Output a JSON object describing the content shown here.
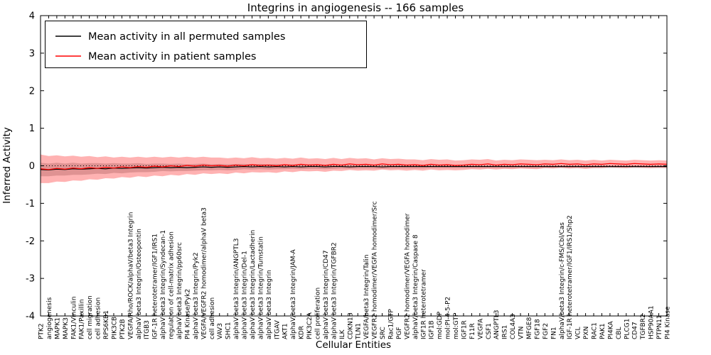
{
  "chart_data": {
    "type": "line",
    "title": "Integrins in angiogenesis -- 166 samples",
    "xlabel": "Cellular Entities",
    "ylabel": "Inferred Activity",
    "ylim": [
      -4,
      4
    ],
    "yticks": [
      -4,
      -3,
      -2,
      -1,
      0,
      1,
      2,
      3,
      4
    ],
    "grid": false,
    "legend_position": "upper left",
    "zero_line": {
      "y": 0,
      "style": "dotted",
      "color": "#000000"
    },
    "categories": [
      "PTK2",
      "angiogenesis",
      "MAPK1",
      "MAPK3",
      "FAK1/Vinculin",
      "FAK1/Paxillin",
      "cell migration",
      "cell adhesion",
      "RPS6KB1",
      "PIK3CB",
      "PTK2B",
      "VEGFA/Rho/ROCK/alphaV/beta3 Integrin",
      "alphaV beta3 Integrin/Osteopontin",
      "ITGB3",
      "IGF-1R heterotetramer/IGF1/IRS1",
      "alphaV beta3 Integrin/Syndecan-1",
      "regulation of cell-matrix adhesion",
      "alphaV beta3 Integrin/pp60src",
      "PI4 Kinase/Pyk2",
      "alphaV beta3 Integrin/Pyk2",
      "VEGFA/VEGFR2 homodimer/alphaV beta3",
      "cell adhesion",
      "VAV3",
      "SHC1",
      "alphaV beta3 Integrin/ANGPTL3",
      "alphaV beta3 Integrin/Del-1",
      "alphaV beta3 Integrin/Lactadherin",
      "alphaV beta3 Integrin/Tumstatin",
      "alphaV beta3 Integrin",
      "ITGAV",
      "AKT1",
      "alphaV/beta3 Integrin/JAM-A",
      "KDR",
      "PIK3C2A",
      "cell proliferation",
      "alphaV beta3 Integrin/CD47",
      "alphaV beta3 Integrin/TGFBR2",
      "ILK",
      "CDKN1B",
      "TLN1",
      "VEGFA/beta3 Integrin/Talin",
      "VEGFR2 homodimer/VEGFA homodimer/Src",
      "SRC",
      "Rac1/GTP",
      "PGF",
      "VEGFR2 homodimer/VEGFA homodimer",
      "alphaV/beta3 Integrin/Caspase 8",
      "IGF1R heterotetramer",
      "IGF1B",
      "mol:GDP",
      "mol:PI-4-5-P2",
      "mol:GTP",
      "IGF1R",
      "F11R",
      "VEGFA",
      "CSF1",
      "ANGPTL3",
      "IRS1",
      "COL4A3",
      "VTN",
      "MFGE8",
      "FGF18",
      "FGF2",
      "FN1",
      "alphaV/beta3 Integrin/c-FMS/Cbl/Cas",
      "IGF-1R heterotetramer/IGF1/IRS1/Shp2",
      "VCL",
      "PXN",
      "RAC1",
      "PAK1",
      "PI4KA",
      "CBL",
      "PLCG1",
      "CD47",
      "TGFBR2",
      "HSP90AA1",
      "PTPN11",
      "PI4 Kinase"
    ],
    "series": [
      {
        "name": "Mean activity in all permuted samples",
        "color": "#000000",
        "band_color": "rgba(0,0,0,0.18)",
        "values": [
          -0.1,
          -0.11,
          -0.09,
          -0.1,
          -0.08,
          -0.09,
          -0.08,
          -0.07,
          -0.08,
          -0.06,
          -0.07,
          -0.06,
          -0.05,
          -0.06,
          -0.05,
          -0.04,
          -0.05,
          -0.04,
          -0.05,
          -0.04,
          -0.03,
          -0.04,
          -0.03,
          -0.04,
          -0.03,
          -0.02,
          -0.03,
          -0.02,
          -0.03,
          -0.02,
          -0.03,
          -0.02,
          -0.03,
          -0.02,
          -0.02,
          -0.03,
          -0.02,
          -0.02,
          -0.03,
          -0.02,
          -0.02,
          -0.02,
          -0.03,
          -0.02,
          -0.02,
          -0.02,
          -0.02,
          -0.02,
          -0.02,
          -0.02,
          -0.02,
          -0.02,
          -0.02,
          -0.02,
          -0.02,
          -0.02,
          -0.02,
          -0.02,
          -0.02,
          -0.02,
          -0.02,
          -0.02,
          -0.02,
          -0.02,
          -0.02,
          -0.02,
          -0.02,
          -0.02,
          -0.02,
          -0.02,
          -0.02,
          -0.02,
          -0.02,
          -0.02,
          -0.02,
          -0.02,
          -0.02,
          -0.02
        ],
        "band_halfwidth": [
          0.18,
          0.17,
          0.17,
          0.16,
          0.16,
          0.15,
          0.15,
          0.14,
          0.14,
          0.13,
          0.13,
          0.12,
          0.12,
          0.11,
          0.11,
          0.1,
          0.1,
          0.1,
          0.09,
          0.09,
          0.09,
          0.08,
          0.08,
          0.08,
          0.08,
          0.07,
          0.07,
          0.07,
          0.07,
          0.07,
          0.06,
          0.06,
          0.06,
          0.06,
          0.06,
          0.06,
          0.06,
          0.05,
          0.05,
          0.05,
          0.05,
          0.05,
          0.05,
          0.05,
          0.05,
          0.05,
          0.05,
          0.05,
          0.04,
          0.04,
          0.04,
          0.04,
          0.04,
          0.04,
          0.04,
          0.04,
          0.04,
          0.04,
          0.04,
          0.04,
          0.04,
          0.04,
          0.04,
          0.04,
          0.04,
          0.04,
          0.04,
          0.04,
          0.04,
          0.04,
          0.04,
          0.04,
          0.04,
          0.04,
          0.04,
          0.04,
          0.04,
          0.04
        ]
      },
      {
        "name": "Mean activity in patient samples",
        "color": "#ff0000",
        "band_color": "rgba(255,0,0,0.30)",
        "values": [
          -0.08,
          -0.1,
          -0.07,
          -0.09,
          -0.06,
          -0.08,
          -0.05,
          -0.07,
          -0.04,
          -0.06,
          -0.03,
          -0.05,
          -0.02,
          -0.04,
          -0.01,
          -0.03,
          0.0,
          -0.02,
          0.01,
          -0.01,
          0.02,
          0.0,
          0.01,
          -0.01,
          0.02,
          0.0,
          0.03,
          0.01,
          0.02,
          0.0,
          0.03,
          0.01,
          0.04,
          0.02,
          0.03,
          0.01,
          0.04,
          0.02,
          0.05,
          0.03,
          0.04,
          0.02,
          0.05,
          0.03,
          0.04,
          0.02,
          0.03,
          0.01,
          0.04,
          0.02,
          0.03,
          0.01,
          0.02,
          0.04,
          0.03,
          0.05,
          0.02,
          0.04,
          0.03,
          0.05,
          0.04,
          0.03,
          0.05,
          0.04,
          0.06,
          0.04,
          0.05,
          0.03,
          0.05,
          0.04,
          0.06,
          0.05,
          0.04,
          0.06,
          0.05,
          0.04,
          0.05,
          0.04
        ],
        "band_halfwidth": [
          0.38,
          0.36,
          0.35,
          0.34,
          0.33,
          0.32,
          0.31,
          0.3,
          0.29,
          0.28,
          0.27,
          0.27,
          0.26,
          0.26,
          0.25,
          0.25,
          0.24,
          0.24,
          0.23,
          0.23,
          0.22,
          0.22,
          0.21,
          0.21,
          0.2,
          0.2,
          0.2,
          0.19,
          0.19,
          0.19,
          0.18,
          0.18,
          0.18,
          0.17,
          0.17,
          0.17,
          0.17,
          0.16,
          0.16,
          0.16,
          0.16,
          0.15,
          0.15,
          0.15,
          0.15,
          0.15,
          0.14,
          0.14,
          0.14,
          0.14,
          0.14,
          0.13,
          0.13,
          0.13,
          0.13,
          0.13,
          0.12,
          0.12,
          0.12,
          0.12,
          0.12,
          0.12,
          0.11,
          0.11,
          0.11,
          0.11,
          0.11,
          0.11,
          0.11,
          0.1,
          0.1,
          0.1,
          0.1,
          0.1,
          0.1,
          0.1,
          0.1,
          0.1
        ]
      }
    ]
  }
}
